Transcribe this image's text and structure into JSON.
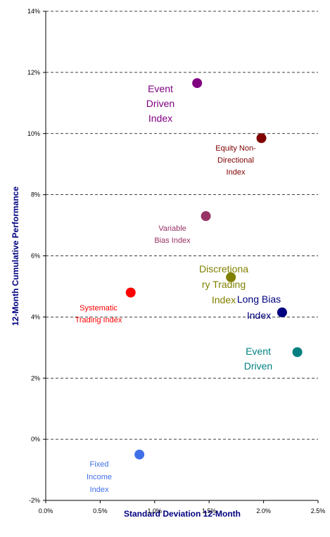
{
  "chart_data": {
    "type": "scatter",
    "x_label": "Standard Deviation 12-Month",
    "y_label": "12-Month Cumulative Performance",
    "xlim": [
      0,
      2.5
    ],
    "xticks": [
      {
        "value": 0,
        "label": "0.0%"
      },
      {
        "value": 0.5,
        "label": "0.5%"
      },
      {
        "value": 1,
        "label": "1.0%"
      },
      {
        "value": 1.5,
        "label": "1.5%"
      },
      {
        "value": 2,
        "label": "2.0%"
      },
      {
        "value": 2.5,
        "label": "2.5%"
      }
    ],
    "ylim": [
      -2,
      14
    ],
    "yticks": [
      {
        "value": -2,
        "label": "-2%"
      },
      {
        "value": 0,
        "label": "0%"
      },
      {
        "value": 2,
        "label": "2%"
      },
      {
        "value": 4,
        "label": "4%"
      },
      {
        "value": 6,
        "label": "6%"
      },
      {
        "value": 8,
        "label": "8%"
      },
      {
        "value": 10,
        "label": "10%"
      },
      {
        "value": 12,
        "label": "12%"
      },
      {
        "value": 14,
        "label": "14%"
      }
    ],
    "grid": true,
    "series": [
      {
        "name": [
          "Event",
          "Driven",
          "Index"
        ],
        "color": "#800080",
        "x": [
          1.39
        ],
        "values": [
          11.65
        ]
      },
      {
        "name": [
          "Equity Non-",
          "Directional",
          "Index"
        ],
        "color": "#800000",
        "x": [
          1.98
        ],
        "values": [
          9.85
        ]
      },
      {
        "name": [
          "Variable",
          "Bias Index"
        ],
        "color": "#993366",
        "x": [
          1.47
        ],
        "values": [
          7.3
        ]
      },
      {
        "name": [
          "Discretiona",
          "ry Trading",
          "Index"
        ],
        "color": "#808000",
        "x": [
          1.7
        ],
        "values": [
          5.3
        ]
      },
      {
        "name": [
          "Systematic",
          "Trading Index"
        ],
        "color": "#ff0000",
        "x": [
          0.78
        ],
        "values": [
          4.8
        ]
      },
      {
        "name": [
          "Long Bias",
          "Index"
        ],
        "color": "#000080",
        "x": [
          2.17
        ],
        "values": [
          4.15
        ]
      },
      {
        "name": [
          "Event",
          "Driven"
        ],
        "color": "#008080",
        "x": [
          2.31
        ],
        "values": [
          2.85
        ]
      },
      {
        "name": [
          "Fixed",
          "Income",
          "Index"
        ],
        "color": "#3f6fe8",
        "x": [
          0.86
        ],
        "values": [
          -0.5
        ]
      }
    ]
  }
}
